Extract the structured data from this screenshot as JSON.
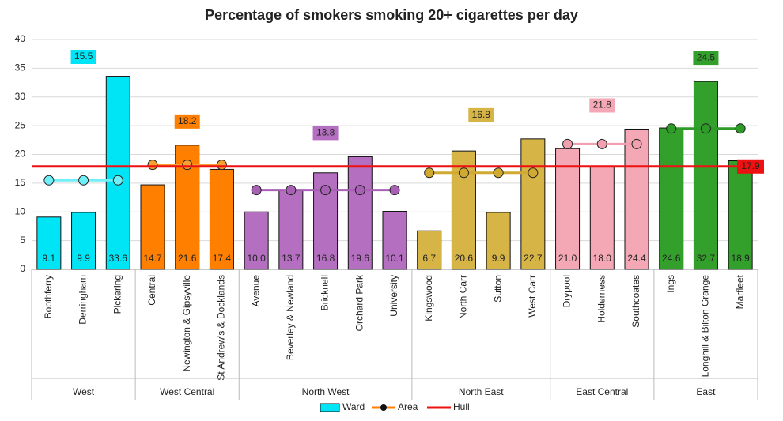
{
  "chart_data": {
    "type": "bar",
    "title": "Percentage of smokers smoking 20+ cigarettes per day",
    "ylim": [
      0,
      40
    ],
    "yticks": [
      0,
      5,
      10,
      15,
      20,
      25,
      30,
      35,
      40
    ],
    "grid": true,
    "legend": {
      "ward": "Ward",
      "area": "Area"
    },
    "hull": {
      "name": "Hull",
      "value": 17.9,
      "color": "#ee1111"
    },
    "groups": [
      {
        "name": "West",
        "color": "#00e5f5",
        "line_color": "#6ff0f8",
        "area": 15.5,
        "categories": [
          "Boothferry",
          "Derringham",
          "Pickering"
        ],
        "values": [
          9.1,
          9.9,
          33.6
        ],
        "value_labels": [
          "9.1",
          "9.9",
          "33.6"
        ]
      },
      {
        "name": "West Central",
        "color": "#ff8000",
        "line_color": "#f5a030",
        "area": 18.2,
        "categories": [
          "Central",
          "Newington & Gipsyville",
          "St Andrew's & Docklands"
        ],
        "values": [
          14.7,
          21.6,
          17.4
        ],
        "value_labels": [
          "14.7",
          "21.6",
          "17.4"
        ]
      },
      {
        "name": "North West",
        "color": "#b56fc0",
        "line_color": "#a760b4",
        "area": 13.8,
        "categories": [
          "Avenue",
          "Beverley & Newland",
          "Bricknell",
          "Orchard Park",
          "University"
        ],
        "values": [
          10.0,
          13.7,
          16.8,
          19.6,
          10.1
        ],
        "value_labels": [
          "10.0",
          "13.7",
          "16.8",
          "19.6",
          "10.1"
        ]
      },
      {
        "name": "North East",
        "color": "#d6b445",
        "line_color": "#d0aa30",
        "area": 16.8,
        "categories": [
          "Kingswood",
          "North Carr",
          "Sutton",
          "West Carr"
        ],
        "values": [
          6.7,
          20.6,
          9.9,
          22.7
        ],
        "value_labels": [
          "6.7",
          "20.6",
          "9.9",
          "22.7"
        ]
      },
      {
        "name": "East Central",
        "color": "#f4a7b4",
        "line_color": "#f0a0ae",
        "area": 21.8,
        "categories": [
          "Drypool",
          "Holderness",
          "Southcoates"
        ],
        "values": [
          21.0,
          18.0,
          24.4
        ],
        "value_labels": [
          "21.0",
          "18.0",
          "24.4"
        ]
      },
      {
        "name": "East",
        "color": "#33a02c",
        "line_color": "#2e9a28",
        "area": 24.5,
        "categories": [
          "Ings",
          "Longhill & Bilton Grange",
          "Marfleet"
        ],
        "values": [
          24.6,
          32.7,
          18.9
        ],
        "value_labels": [
          "24.6",
          "32.7",
          "18.9"
        ]
      }
    ]
  }
}
